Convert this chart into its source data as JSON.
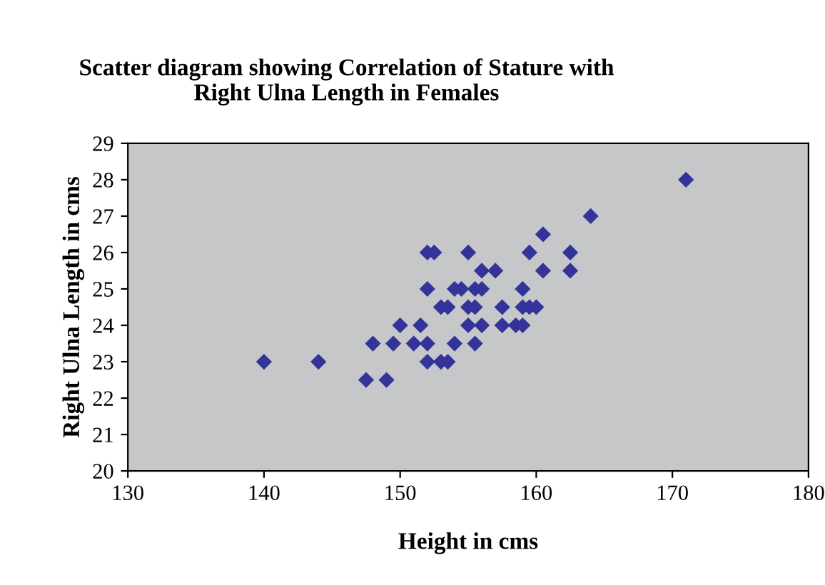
{
  "chart_data": {
    "type": "scatter",
    "title": "Scatter diagram showing Correlation of Stature with\nRight Ulna Length in Females",
    "xlabel": "Height in cms",
    "ylabel": "Right Ulna Length in cms",
    "x": [
      140,
      144,
      147.5,
      149,
      148,
      149.5,
      150,
      151,
      151.5,
      152,
      152,
      152,
      152,
      152.5,
      153,
      153.5,
      153,
      153.5,
      154,
      154,
      154.5,
      155,
      155,
      155,
      155.5,
      155.5,
      155.5,
      156,
      156,
      156,
      157,
      157.5,
      157.5,
      158.5,
      159,
      159,
      159,
      159.5,
      159.5,
      160,
      160.5,
      160.5,
      162.5,
      162.5,
      164,
      171
    ],
    "series": [
      {
        "color": "#333399",
        "values": [
          23,
          23,
          22.5,
          22.5,
          23.5,
          23.5,
          24,
          23.5,
          24,
          23.5,
          23,
          25,
          26,
          26,
          24.5,
          24.5,
          23,
          23,
          23.5,
          25,
          25,
          26,
          24.5,
          24,
          23.5,
          25,
          24.5,
          25.5,
          24,
          25,
          25.5,
          24.5,
          24,
          24,
          24,
          25,
          24.5,
          24.5,
          26,
          24.5,
          25.5,
          26.5,
          26,
          25.5,
          27,
          28
        ]
      }
    ],
    "xlim": [
      130,
      180
    ],
    "xticks": [
      130,
      140,
      150,
      160,
      170,
      180
    ],
    "ylim": [
      20,
      29
    ],
    "yticks": [
      20,
      21,
      22,
      23,
      24,
      25,
      26,
      27,
      28,
      29
    ],
    "marker": "diamond",
    "grid": false
  }
}
